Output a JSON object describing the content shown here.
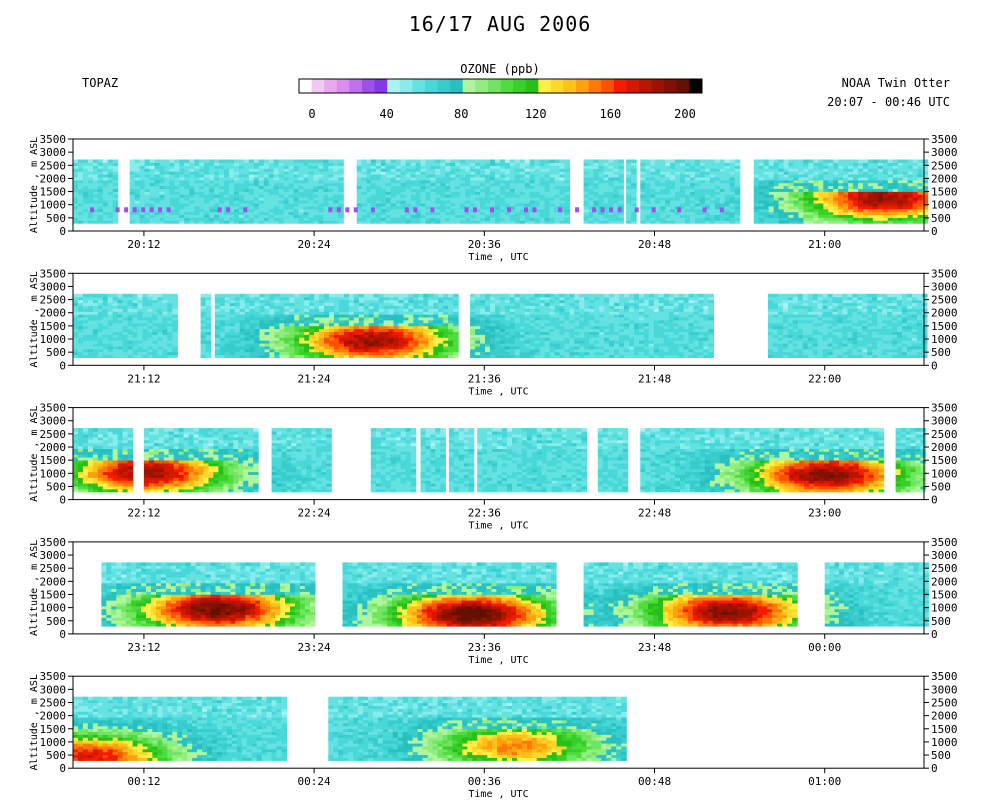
{
  "title": "16/17 AUG 2006",
  "site": "TOPAZ",
  "platform": "NOAA Twin Otter",
  "time_range": "20:07 - 00:46 UTC",
  "colorbar": {
    "title": "OZONE (ppb)",
    "tick_labels": [
      "0",
      "40",
      "80",
      "120",
      "160",
      "200"
    ],
    "range": [
      0,
      200
    ],
    "colors": [
      "#ffffff",
      "#f4c8f4",
      "#eaa8f0",
      "#dc8cee",
      "#c070ec",
      "#a050ea",
      "#8438e6",
      "#a8f4f4",
      "#88ecec",
      "#64e2e2",
      "#48d8d8",
      "#38cccc",
      "#28c0c0",
      "#b0f49c",
      "#90ee80",
      "#70e660",
      "#50dc40",
      "#38d028",
      "#28c018",
      "#fff048",
      "#ffd828",
      "#ffc018",
      "#ffa010",
      "#ff7808",
      "#ff5000",
      "#f41c00",
      "#d41800",
      "#b81400",
      "#9c1200",
      "#801000",
      "#641000",
      "#000000"
    ]
  },
  "chart_data": [
    {
      "type": "heatmap",
      "ylabel": "Altitude , m ASL",
      "xlabel": "Time , UTC",
      "yticks": [
        0,
        500,
        1000,
        1500,
        2000,
        2500,
        3000,
        3500
      ],
      "ylim": [
        0,
        3500
      ],
      "xlim": [
        "20:07",
        "21:07"
      ],
      "xtick_labels": [
        "20:12",
        "20:24",
        "20:36",
        "20:48",
        "21:00"
      ],
      "data_segments": [
        [
          "20:07",
          "20:10"
        ],
        [
          "20:11",
          "20:26"
        ],
        [
          "20:27",
          "20:27.7"
        ],
        [
          "20:28",
          "20:42"
        ],
        [
          "20:43",
          "20:45.5"
        ],
        [
          "20:46",
          "20:46.5"
        ],
        [
          "20:47",
          "20:54"
        ],
        [
          "20:55",
          "21:07"
        ]
      ],
      "ozone_peaks_ppb": [
        {
          "time": "21:04",
          "alt_m": 1200,
          "value": 180
        },
        {
          "time": "20:08",
          "alt_m": 600,
          "value": 20
        }
      ]
    },
    {
      "type": "heatmap",
      "ylabel": "Altitude , m ASL",
      "xlabel": "Time , UTC",
      "yticks": [
        0,
        500,
        1000,
        1500,
        2000,
        2500,
        3000,
        3500
      ],
      "ylim": [
        0,
        3500
      ],
      "xlim": [
        "21:07",
        "22:07"
      ],
      "xtick_labels": [
        "21:12",
        "21:24",
        "21:36",
        "21:48",
        "22:00"
      ],
      "data_segments": [
        [
          "21:07",
          "21:14"
        ],
        [
          "21:16",
          "21:16.5"
        ],
        [
          "21:17",
          "21:34"
        ],
        [
          "21:35",
          "21:52"
        ],
        [
          "21:56",
          "22:07"
        ]
      ],
      "ozone_peaks_ppb": [
        {
          "time": "21:28",
          "alt_m": 900,
          "value": 180
        }
      ]
    },
    {
      "type": "heatmap",
      "ylabel": "Altitude , m ASL",
      "xlabel": "Time , UTC",
      "yticks": [
        0,
        500,
        1000,
        1500,
        2000,
        2500,
        3000,
        3500
      ],
      "ylim": [
        0,
        3500
      ],
      "xlim": [
        "22:07",
        "23:07"
      ],
      "xtick_labels": [
        "22:12",
        "22:24",
        "22:36",
        "22:48",
        "23:00"
      ],
      "data_segments": [
        [
          "22:07",
          "22:11"
        ],
        [
          "22:12",
          "22:20"
        ],
        [
          "22:21",
          "22:25"
        ],
        [
          "22:28",
          "22:31"
        ],
        [
          "22:31.5",
          "22:33"
        ],
        [
          "22:33.5",
          "22:35"
        ],
        [
          "22:35.5",
          "22:43"
        ],
        [
          "22:44",
          "22:46"
        ],
        [
          "22:47",
          "23:04"
        ],
        [
          "23:05",
          "23:07"
        ]
      ],
      "ozone_peaks_ppb": [
        {
          "time": "22:12",
          "alt_m": 1000,
          "value": 180
        },
        {
          "time": "23:00",
          "alt_m": 900,
          "value": 185
        }
      ]
    },
    {
      "type": "heatmap",
      "ylabel": "Altitude , m ASL",
      "xlabel": "Time , UTC",
      "yticks": [
        0,
        500,
        1000,
        1500,
        2000,
        2500,
        3000,
        3500
      ],
      "ylim": [
        0,
        3500
      ],
      "xlim": [
        "23:07",
        "00:07"
      ],
      "xtick_labels": [
        "23:12",
        "23:24",
        "23:36",
        "23:48",
        "00:00"
      ],
      "data_segments": [
        [
          "23:09",
          "23:24"
        ],
        [
          "23:26",
          "23:41"
        ],
        [
          "23:43",
          "23:58"
        ],
        [
          "00:00",
          "00:00.8"
        ],
        [
          "00:01",
          "00:07"
        ]
      ],
      "ozone_peaks_ppb": [
        {
          "time": "23:17",
          "alt_m": 900,
          "value": 190
        },
        {
          "time": "23:35",
          "alt_m": 700,
          "value": 195
        },
        {
          "time": "23:53",
          "alt_m": 800,
          "value": 185
        }
      ]
    },
    {
      "type": "heatmap",
      "ylabel": "Altitude , m ASL",
      "xlabel": "Time , UTC",
      "yticks": [
        0,
        500,
        1000,
        1500,
        2000,
        2500,
        3000,
        3500
      ],
      "ylim": [
        0,
        3500
      ],
      "xlim": [
        "00:07",
        "01:07"
      ],
      "xtick_labels": [
        "00:12",
        "00:24",
        "00:36",
        "00:48",
        "01:00"
      ],
      "data_segments": [
        [
          "00:07",
          "00:22"
        ],
        [
          "00:25",
          "00:46"
        ]
      ],
      "ozone_peaks_ppb": [
        {
          "time": "00:08",
          "alt_m": 400,
          "value": 165
        },
        {
          "time": "00:38",
          "alt_m": 800,
          "value": 145
        }
      ]
    }
  ]
}
